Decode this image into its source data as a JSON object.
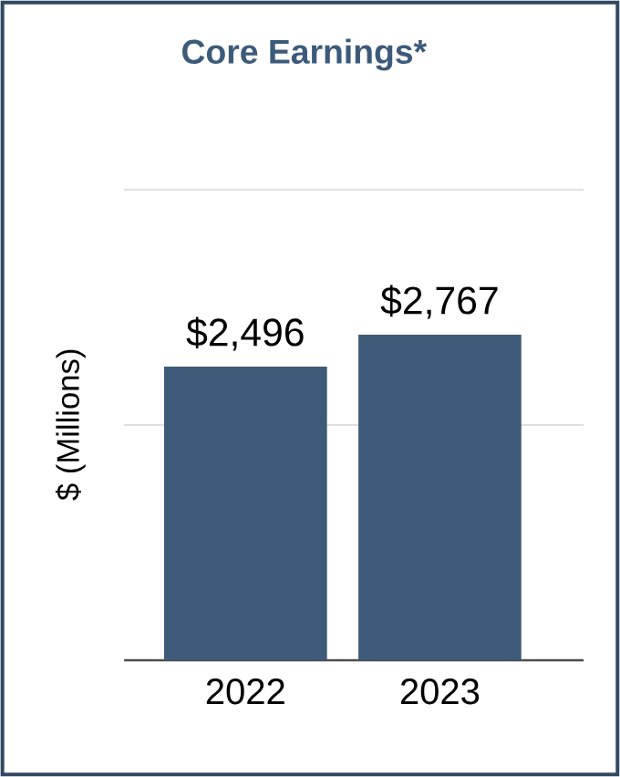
{
  "chart_data": {
    "type": "bar",
    "title": "Core Earnings*",
    "ylabel": "$ (Millions)",
    "categories": [
      "2022",
      "2023"
    ],
    "values": [
      2496,
      2767
    ],
    "value_labels": [
      "$2,496",
      "$2,767"
    ],
    "color": "#3d5a78",
    "ylim": [
      0,
      4000
    ],
    "yticks": [
      {
        "value": 0,
        "label": null
      },
      {
        "value": 2000,
        "label": null
      },
      {
        "value": 4000,
        "label": null
      }
    ],
    "grid": "y",
    "tick_labels": "x"
  }
}
